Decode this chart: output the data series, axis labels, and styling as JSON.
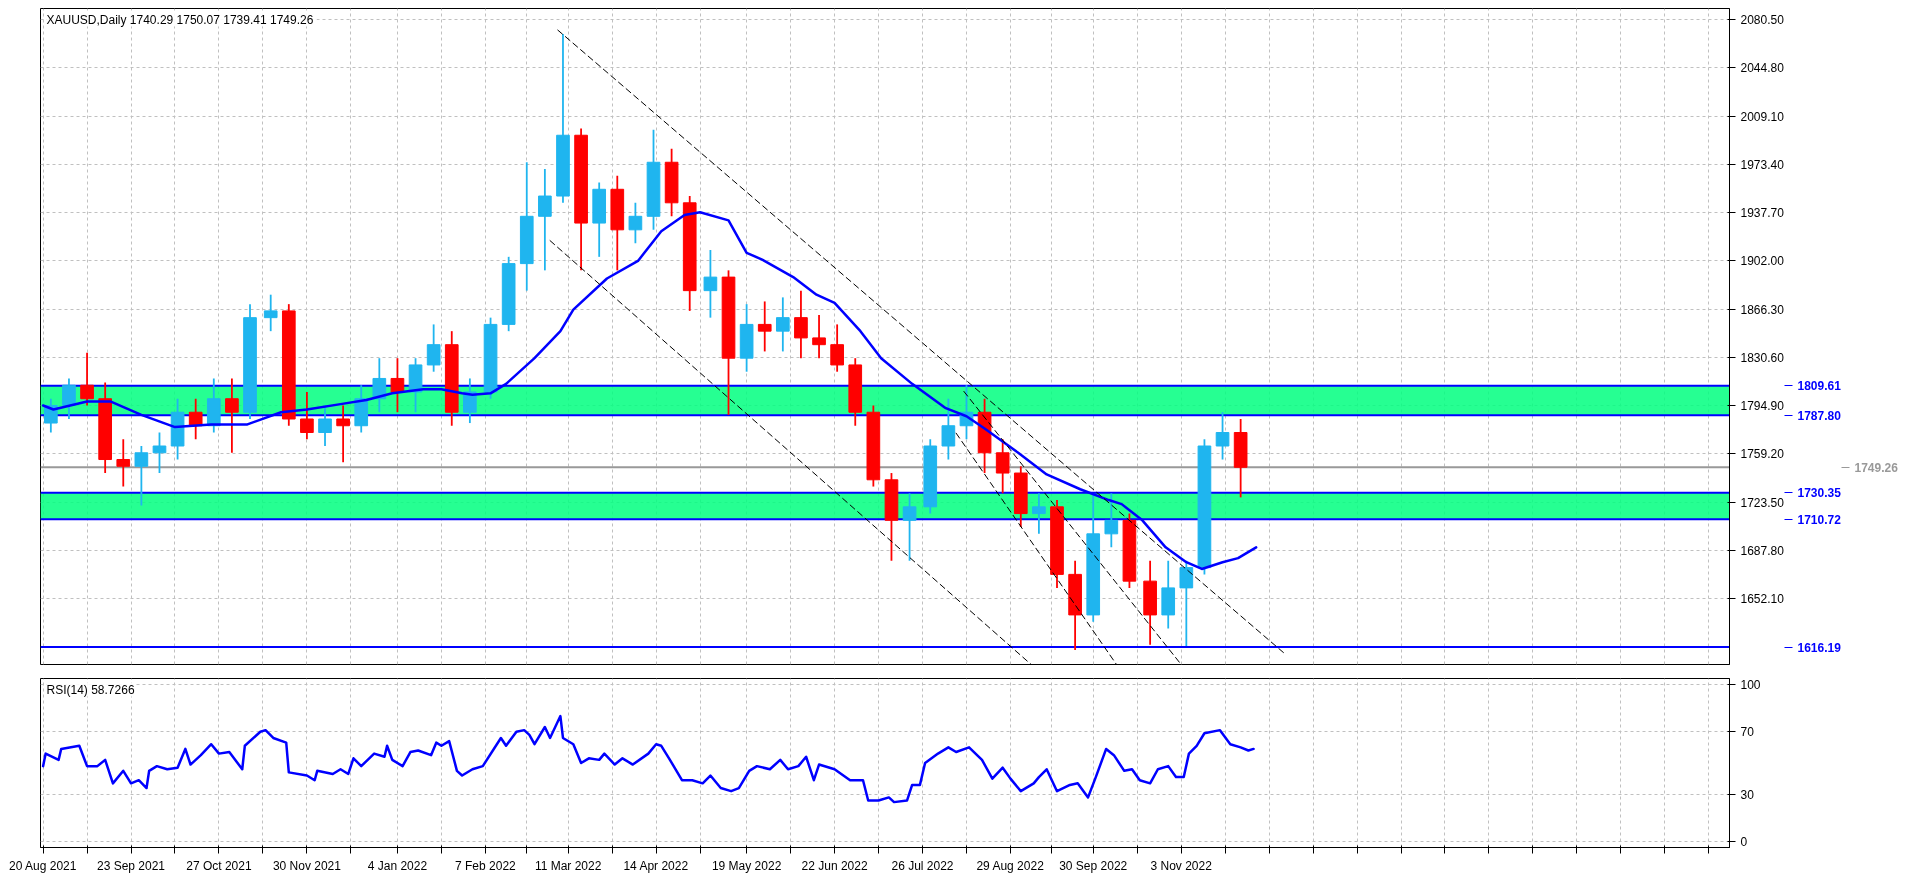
{
  "chart_data": [
    {
      "type": "candlestick",
      "title": "XAUUSD,Daily  1740.29 1750.07 1739.41 1749.26",
      "x": [
        "2021-08-23",
        "2021-08-30",
        "2021-09-06",
        "2021-09-13",
        "2021-09-20",
        "2021-09-27",
        "2021-10-04",
        "2021-10-11",
        "2021-10-18",
        "2021-10-25",
        "2021-11-01",
        "2021-11-08",
        "2021-11-16",
        "2021-11-23",
        "2021-11-30",
        "2021-12-07",
        "2021-12-14",
        "2021-12-21",
        "2021-12-28",
        "2022-01-04",
        "2022-01-11",
        "2022-01-18",
        "2022-01-25",
        "2022-02-01",
        "2022-02-09",
        "2022-02-16",
        "2022-02-23",
        "2022-03-02",
        "2022-03-09",
        "2022-03-16",
        "2022-03-23",
        "2022-03-30",
        "2022-04-06",
        "2022-04-13",
        "2022-04-20",
        "2022-04-27",
        "2022-05-05",
        "2022-05-12",
        "2022-05-19",
        "2022-05-26",
        "2022-06-02",
        "2022-06-09",
        "2022-06-16",
        "2022-06-23",
        "2022-06-30",
        "2022-07-07",
        "2022-07-14",
        "2022-07-21",
        "2022-07-29",
        "2022-08-05",
        "2022-08-12",
        "2022-08-19",
        "2022-08-26",
        "2022-09-02",
        "2022-09-09",
        "2022-09-16",
        "2022-09-23",
        "2022-09-30",
        "2022-10-07",
        "2022-10-14",
        "2022-10-22",
        "2022-10-29",
        "2022-11-05",
        "2022-11-12",
        "2022-11-19",
        "2022-11-26"
      ],
      "ohlc": [
        [
          1782,
          1800,
          1775,
          1795
        ],
        [
          1795,
          1815,
          1785,
          1810
        ],
        [
          1810,
          1834,
          1795,
          1800
        ],
        [
          1800,
          1812,
          1745,
          1755
        ],
        [
          1755,
          1770,
          1735,
          1750
        ],
        [
          1750,
          1765,
          1721,
          1760
        ],
        [
          1760,
          1775,
          1745,
          1765
        ],
        [
          1765,
          1800,
          1755,
          1790
        ],
        [
          1790,
          1800,
          1770,
          1780
        ],
        [
          1780,
          1815,
          1775,
          1800
        ],
        [
          1800,
          1815,
          1760,
          1790
        ],
        [
          1790,
          1870,
          1785,
          1860
        ],
        [
          1860,
          1877,
          1850,
          1865
        ],
        [
          1865,
          1870,
          1780,
          1785
        ],
        [
          1785,
          1805,
          1770,
          1775
        ],
        [
          1775,
          1795,
          1765,
          1785
        ],
        [
          1785,
          1795,
          1753,
          1780
        ],
        [
          1780,
          1810,
          1775,
          1800
        ],
        [
          1800,
          1830,
          1790,
          1815
        ],
        [
          1815,
          1830,
          1790,
          1805
        ],
        [
          1805,
          1830,
          1790,
          1825
        ],
        [
          1825,
          1855,
          1820,
          1840
        ],
        [
          1840,
          1850,
          1780,
          1790
        ],
        [
          1790,
          1815,
          1782,
          1805
        ],
        [
          1805,
          1860,
          1800,
          1855
        ],
        [
          1855,
          1905,
          1850,
          1900
        ],
        [
          1900,
          1975,
          1880,
          1935
        ],
        [
          1935,
          1970,
          1895,
          1950
        ],
        [
          1950,
          2070,
          1945,
          1995
        ],
        [
          1995,
          2000,
          1895,
          1930
        ],
        [
          1930,
          1960,
          1905,
          1955
        ],
        [
          1955,
          1965,
          1895,
          1925
        ],
        [
          1925,
          1945,
          1915,
          1935
        ],
        [
          1935,
          1999,
          1925,
          1975
        ],
        [
          1975,
          1985,
          1935,
          1945
        ],
        [
          1945,
          1950,
          1865,
          1880
        ],
        [
          1880,
          1910,
          1860,
          1890
        ],
        [
          1890,
          1895,
          1788,
          1830
        ],
        [
          1830,
          1870,
          1820,
          1855
        ],
        [
          1855,
          1872,
          1835,
          1850
        ],
        [
          1850,
          1875,
          1835,
          1860
        ],
        [
          1860,
          1880,
          1830,
          1845
        ],
        [
          1845,
          1862,
          1830,
          1840
        ],
        [
          1840,
          1855,
          1820,
          1825
        ],
        [
          1825,
          1830,
          1780,
          1790
        ],
        [
          1790,
          1795,
          1735,
          1740
        ],
        [
          1740,
          1745,
          1680,
          1710
        ],
        [
          1710,
          1730,
          1680,
          1720
        ],
        [
          1720,
          1770,
          1715,
          1765
        ],
        [
          1765,
          1800,
          1755,
          1780
        ],
        [
          1780,
          1810,
          1770,
          1790
        ],
        [
          1790,
          1800,
          1745,
          1760
        ],
        [
          1760,
          1770,
          1730,
          1745
        ],
        [
          1745,
          1750,
          1705,
          1715
        ],
        [
          1715,
          1730,
          1700,
          1720
        ],
        [
          1720,
          1725,
          1660,
          1670
        ],
        [
          1670,
          1680,
          1614,
          1640
        ],
        [
          1640,
          1730,
          1635,
          1700
        ],
        [
          1700,
          1730,
          1690,
          1710
        ],
        [
          1710,
          1715,
          1660,
          1665
        ],
        [
          1665,
          1680,
          1618,
          1640
        ],
        [
          1640,
          1680,
          1630,
          1660
        ],
        [
          1660,
          1680,
          1617,
          1675
        ],
        [
          1675,
          1770,
          1670,
          1765
        ],
        [
          1765,
          1790,
          1755,
          1775
        ],
        [
          1775,
          1785,
          1727,
          1749.26
        ]
      ],
      "colors": [
        "#1fb5ef",
        "#1fb5ef",
        "#ff0000",
        "#ff0000",
        "#ff0000",
        "#1fb5ef",
        "#1fb5ef",
        "#1fb5ef",
        "#ff0000",
        "#1fb5ef",
        "#ff0000",
        "#1fb5ef",
        "#1fb5ef",
        "#ff0000",
        "#ff0000",
        "#1fb5ef",
        "#ff0000",
        "#1fb5ef",
        "#1fb5ef",
        "#ff0000",
        "#1fb5ef",
        "#1fb5ef",
        "#ff0000",
        "#1fb5ef",
        "#1fb5ef",
        "#1fb5ef",
        "#1fb5ef",
        "#1fb5ef",
        "#1fb5ef",
        "#ff0000",
        "#1fb5ef",
        "#ff0000",
        "#1fb5ef",
        "#1fb5ef",
        "#ff0000",
        "#ff0000",
        "#1fb5ef",
        "#ff0000",
        "#1fb5ef",
        "#ff0000",
        "#1fb5ef",
        "#ff0000",
        "#ff0000",
        "#ff0000",
        "#ff0000",
        "#ff0000",
        "#ff0000",
        "#1fb5ef",
        "#1fb5ef",
        "#1fb5ef",
        "#1fb5ef",
        "#ff0000",
        "#ff0000",
        "#ff0000",
        "#1fb5ef",
        "#ff0000",
        "#ff0000",
        "#1fb5ef",
        "#1fb5ef",
        "#ff0000",
        "#ff0000",
        "#1fb5ef",
        "#1fb5ef",
        "#1fb5ef",
        "#1fb5ef",
        "#ff0000"
      ],
      "series": [
        {
          "type": "line",
          "color": "#0000ff",
          "x": [
            "2021-08-20",
            "2021-08-24",
            "2021-09-06",
            "2021-09-15",
            "2021-09-27",
            "2021-10-10",
            "2021-10-24",
            "2021-11-07",
            "2021-11-20",
            "2021-11-30",
            "2021-12-13",
            "2021-12-23",
            "2022-01-02",
            "2022-01-14",
            "2022-01-21",
            "2022-01-29",
            "2022-02-02",
            "2022-02-09",
            "2022-02-15",
            "2022-02-26",
            "2022-03-08",
            "2022-03-13",
            "2022-03-26",
            "2022-04-07",
            "2022-04-16",
            "2022-04-25",
            "2022-05-01",
            "2022-05-12",
            "2022-05-19",
            "2022-05-25",
            "2022-06-06",
            "2022-06-15",
            "2022-06-22",
            "2022-07-02",
            "2022-07-10",
            "2022-07-22",
            "2022-08-04",
            "2022-08-12",
            "2022-08-19",
            "2022-09-01",
            "2022-09-12",
            "2022-09-25",
            "2022-10-06",
            "2022-10-11",
            "2022-10-19",
            "2022-10-28",
            "2022-11-05",
            "2022-11-11",
            "2022-11-19",
            "2022-11-25",
            "2022-12-02"
          ],
          "values": [
            1795,
            1792,
            1798,
            1798,
            1788,
            1779,
            1781,
            1781,
            1790,
            1792,
            1796,
            1799,
            1804,
            1807,
            1807,
            1804,
            1803,
            1804,
            1811,
            1830,
            1850,
            1866,
            1889,
            1902,
            1924,
            1936,
            1938,
            1932,
            1908,
            1903,
            1890,
            1877,
            1871,
            1850,
            1830,
            1811,
            1793,
            1787,
            1778,
            1760,
            1744,
            1733,
            1725,
            1722,
            1710,
            1690,
            1679,
            1674,
            1679,
            1682,
            1690
          ]
        },
        {
          "type": "line",
          "color": "#000000",
          "line_style": "dashed",
          "x": [
            "2022-03-07",
            "2022-12-13"
          ],
          "values": [
            2072.8,
            1611.4
          ]
        },
        {
          "type": "line",
          "color": "#000000",
          "line_style": "dashed",
          "x": [
            "2022-03-04",
            "2022-09-06"
          ],
          "values": [
            1917,
            1603.3
          ]
        },
        {
          "type": "line",
          "color": "#000000",
          "line_style": "dashed",
          "x": [
            "2022-08-11",
            "2022-11-03"
          ],
          "values": [
            1805.4,
            1603.3
          ]
        },
        {
          "type": "line",
          "color": "#000000",
          "line_style": "dashed",
          "x": [
            "2022-08-08",
            "2022-10-09"
          ],
          "values": [
            1774.5,
            1603.3
          ]
        }
      ],
      "xlim": [
        "2021-08-19",
        "2023-06-03"
      ],
      "ylim": [
        1603.3,
        2088.8
      ],
      "xticks": [
        {
          "value": "2021-08-20",
          "label": null
        },
        {
          "value": "2021-09-06",
          "label": null
        },
        {
          "value": "2021-09-23",
          "label": null
        },
        {
          "value": "2021-10-10",
          "label": null
        },
        {
          "value": "2021-10-27",
          "label": null
        },
        {
          "value": "2021-11-13",
          "label": null
        },
        {
          "value": "2021-11-30",
          "label": null
        },
        {
          "value": "2021-12-17",
          "label": null
        },
        {
          "value": "2022-01-04",
          "label": null
        },
        {
          "value": "2022-01-21",
          "label": null
        },
        {
          "value": "2022-02-07",
          "label": null
        },
        {
          "value": "2022-02-23",
          "label": null
        },
        {
          "value": "2022-03-11",
          "label": null
        },
        {
          "value": "2022-03-28",
          "label": null
        },
        {
          "value": "2022-04-14",
          "label": null
        },
        {
          "value": "2022-05-01",
          "label": null
        },
        {
          "value": "2022-05-19",
          "label": null
        },
        {
          "value": "2022-06-05",
          "label": null
        },
        {
          "value": "2022-06-22",
          "label": null
        },
        {
          "value": "2022-07-09",
          "label": null
        },
        {
          "value": "2022-07-26",
          "label": null
        },
        {
          "value": "2022-08-12",
          "label": null
        },
        {
          "value": "2022-08-29",
          "label": null
        },
        {
          "value": "2022-09-14",
          "label": null
        },
        {
          "value": "2022-09-30",
          "label": null
        },
        {
          "value": "2022-10-17",
          "label": null
        },
        {
          "value": "2022-11-03",
          "label": null
        },
        {
          "value": "2022-11-20",
          "label": null
        },
        {
          "value": "2022-12-07",
          "label": null
        },
        {
          "value": "2022-12-24",
          "label": null
        },
        {
          "value": "2023-01-10",
          "label": null
        },
        {
          "value": "2023-01-27",
          "label": null
        },
        {
          "value": "2023-02-13",
          "label": null
        },
        {
          "value": "2023-03-02",
          "label": null
        },
        {
          "value": "2023-03-19",
          "label": null
        },
        {
          "value": "2023-04-05",
          "label": null
        },
        {
          "value": "2023-04-22",
          "label": null
        },
        {
          "value": "2023-05-09",
          "label": null
        },
        {
          "value": "2023-05-26",
          "label": null
        }
      ],
      "yticks": [
        {
          "value": 1652.1,
          "label": "1652.10"
        },
        {
          "value": 1687.8,
          "label": "1687.80"
        },
        {
          "value": 1723.5,
          "label": "1723.50"
        },
        {
          "value": 1759.2,
          "label": "1759.20"
        },
        {
          "value": 1794.9,
          "label": "1794.90"
        },
        {
          "value": 1830.6,
          "label": "1830.60"
        },
        {
          "value": 1866.3,
          "label": "1866.30"
        },
        {
          "value": 1902,
          "label": "1902.00"
        },
        {
          "value": 1937.7,
          "label": "1937.70"
        },
        {
          "value": 1973.4,
          "label": "1973.40"
        },
        {
          "value": 2009.1,
          "label": "2009.10"
        },
        {
          "value": 2044.8,
          "label": "2044.80"
        },
        {
          "value": 2080.5,
          "label": "2080.50"
        }
      ],
      "bands": [
        {
          "axis": "y",
          "from": 1787.8,
          "to": 1809.61,
          "color": "#00ff7f"
        },
        {
          "axis": "y",
          "from": 1710.72,
          "to": 1730.35,
          "color": "#00ff7f"
        }
      ],
      "ref_lines": [
        {
          "axis": "y",
          "value": 1809.61,
          "label": "1809.61",
          "color": "#0000ff"
        },
        {
          "axis": "y",
          "value": 1787.8,
          "label": "1787.80",
          "color": "#0000ff"
        },
        {
          "axis": "y",
          "value": 1749.26,
          "label": "1749.26",
          "color": "#999999"
        },
        {
          "axis": "y",
          "value": 1730.35,
          "label": "1730.35",
          "color": "#0000ff"
        },
        {
          "axis": "y",
          "value": 1710.72,
          "label": "1710.72",
          "color": "#0000ff"
        },
        {
          "axis": "y",
          "value": 1616.19,
          "label": "1616.19",
          "color": "#0000ff"
        }
      ],
      "grid": true,
      "tick_labels": "y"
    },
    {
      "type": "line",
      "title": "RSI(14) 58.7266",
      "series": [
        {
          "color": "#0000ff",
          "x": [
            "2021-08-20",
            "2021-08-21",
            "2021-08-26",
            "2021-08-27",
            "2021-09-03",
            "2021-09-06",
            "2021-09-10",
            "2021-09-13",
            "2021-09-16",
            "2021-09-20",
            "2021-09-23",
            "2021-09-26",
            "2021-09-29",
            "2021-09-30",
            "2021-10-03",
            "2021-10-07",
            "2021-10-11",
            "2021-10-14",
            "2021-10-16",
            "2021-10-20",
            "2021-10-24",
            "2021-10-27",
            "2021-10-31",
            "2021-11-05",
            "2021-11-06",
            "2021-11-12",
            "2021-11-14",
            "2021-11-17",
            "2021-11-22",
            "2021-11-23",
            "2021-11-30",
            "2021-12-03",
            "2021-12-04",
            "2021-12-10",
            "2021-12-13",
            "2021-12-16",
            "2021-12-18",
            "2021-12-21",
            "2021-12-26",
            "2021-12-30",
            "2021-12-31",
            "2022-01-02",
            "2022-01-06",
            "2022-01-09",
            "2022-01-12",
            "2022-01-17",
            "2022-01-19",
            "2022-01-21",
            "2022-01-24",
            "2022-01-27",
            "2022-01-29",
            "2022-02-02",
            "2022-02-06",
            "2022-02-13",
            "2022-02-15",
            "2022-02-19",
            "2022-02-22",
            "2022-02-24",
            "2022-02-26",
            "2022-03-02",
            "2022-03-04",
            "2022-03-08",
            "2022-03-09",
            "2022-03-13",
            "2022-03-16",
            "2022-03-19",
            "2022-03-23",
            "2022-03-25",
            "2022-03-29",
            "2022-04-01",
            "2022-04-05",
            "2022-04-11",
            "2022-04-14",
            "2022-04-16",
            "2022-04-19",
            "2022-04-24",
            "2022-04-28",
            "2022-05-02",
            "2022-05-05",
            "2022-05-09",
            "2022-05-13",
            "2022-05-16",
            "2022-05-20",
            "2022-05-23",
            "2022-05-28",
            "2022-06-01",
            "2022-06-04",
            "2022-06-08",
            "2022-06-11",
            "2022-06-14",
            "2022-06-16",
            "2022-06-22",
            "2022-06-28",
            "2022-07-03",
            "2022-07-05",
            "2022-07-09",
            "2022-07-13",
            "2022-07-15",
            "2022-07-20",
            "2022-07-22",
            "2022-07-25",
            "2022-07-27",
            "2022-08-01",
            "2022-08-05",
            "2022-08-08",
            "2022-08-13",
            "2022-08-18",
            "2022-08-22",
            "2022-08-26",
            "2022-08-29",
            "2022-09-02",
            "2022-09-07",
            "2022-09-09",
            "2022-09-12",
            "2022-09-16",
            "2022-09-21",
            "2022-09-24",
            "2022-09-28",
            "2022-10-01",
            "2022-10-05",
            "2022-10-08",
            "2022-10-12",
            "2022-10-15",
            "2022-10-18",
            "2022-10-22",
            "2022-10-25",
            "2022-10-29",
            "2022-11-01",
            "2022-11-04",
            "2022-11-06",
            "2022-11-09",
            "2022-11-12",
            "2022-11-18",
            "2022-11-22",
            "2022-11-26",
            "2022-11-29",
            "2022-12-01"
          ],
          "values": [
            48,
            56,
            52,
            59,
            61,
            48,
            48,
            52,
            37,
            45,
            37,
            39,
            34,
            45,
            48,
            46,
            47,
            59,
            49,
            55,
            62,
            56,
            57,
            46,
            61,
            70,
            71,
            66,
            63,
            44,
            42,
            39,
            45,
            43,
            46,
            43,
            53,
            48,
            56,
            54,
            61,
            52,
            48,
            57,
            58,
            55,
            63,
            61,
            64,
            45,
            42,
            46,
            48,
            66,
            61,
            70,
            71,
            68,
            62,
            73,
            66,
            80,
            66,
            62,
            50,
            53,
            52,
            56,
            49,
            53,
            49,
            56,
            62,
            61,
            53,
            39,
            39,
            37,
            42,
            34,
            32,
            34,
            45,
            48,
            46,
            52,
            46,
            48,
            54,
            39,
            49,
            46,
            39,
            39,
            26,
            26,
            28,
            25,
            26,
            36,
            36,
            50,
            56,
            60,
            57,
            60,
            52,
            40,
            47,
            40,
            32,
            37,
            41,
            46,
            32,
            36,
            37,
            28,
            41,
            59,
            55,
            45,
            46,
            39,
            37,
            46,
            48,
            41,
            41,
            56,
            61,
            69,
            71,
            62,
            60,
            58,
            59
          ]
        }
      ],
      "xlim": [
        "2021-08-19",
        "2023-06-03"
      ],
      "ylim": [
        -4,
        104
      ],
      "xticks": [
        {
          "value": "2021-08-20",
          "label": "20 Aug 2021"
        },
        {
          "value": "2021-09-06",
          "label": null
        },
        {
          "value": "2021-09-23",
          "label": "23 Sep 2021"
        },
        {
          "value": "2021-10-10",
          "label": null
        },
        {
          "value": "2021-10-27",
          "label": "27 Oct 2021"
        },
        {
          "value": "2021-11-13",
          "label": null
        },
        {
          "value": "2021-11-30",
          "label": "30 Nov 2021"
        },
        {
          "value": "2021-12-17",
          "label": null
        },
        {
          "value": "2022-01-04",
          "label": "4 Jan 2022"
        },
        {
          "value": "2022-01-21",
          "label": null
        },
        {
          "value": "2022-02-07",
          "label": "7 Feb 2022"
        },
        {
          "value": "2022-02-23",
          "label": null
        },
        {
          "value": "2022-03-11",
          "label": "11 Mar 2022"
        },
        {
          "value": "2022-03-28",
          "label": null
        },
        {
          "value": "2022-04-14",
          "label": "14 Apr 2022"
        },
        {
          "value": "2022-05-01",
          "label": null
        },
        {
          "value": "2022-05-19",
          "label": "19 May 2022"
        },
        {
          "value": "2022-06-05",
          "label": null
        },
        {
          "value": "2022-06-22",
          "label": "22 Jun 2022"
        },
        {
          "value": "2022-07-09",
          "label": null
        },
        {
          "value": "2022-07-26",
          "label": "26 Jul 2022"
        },
        {
          "value": "2022-08-12",
          "label": null
        },
        {
          "value": "2022-08-29",
          "label": "29 Aug 2022"
        },
        {
          "value": "2022-09-14",
          "label": null
        },
        {
          "value": "2022-09-30",
          "label": "30 Sep 2022"
        },
        {
          "value": "2022-10-17",
          "label": null
        },
        {
          "value": "2022-11-03",
          "label": "3 Nov 2022"
        },
        {
          "value": "2022-11-20",
          "label": null
        },
        {
          "value": "2022-12-07",
          "label": null
        },
        {
          "value": "2022-12-24",
          "label": null
        },
        {
          "value": "2023-01-10",
          "label": null
        },
        {
          "value": "2023-01-27",
          "label": null
        },
        {
          "value": "2023-02-13",
          "label": null
        },
        {
          "value": "2023-03-02",
          "label": null
        },
        {
          "value": "2023-03-19",
          "label": null
        },
        {
          "value": "2023-04-05",
          "label": null
        },
        {
          "value": "2023-04-22",
          "label": null
        },
        {
          "value": "2023-05-09",
          "label": null
        },
        {
          "value": "2023-05-26",
          "label": null
        }
      ],
      "yticks": [
        0,
        30,
        70,
        100
      ],
      "grid": true
    }
  ]
}
